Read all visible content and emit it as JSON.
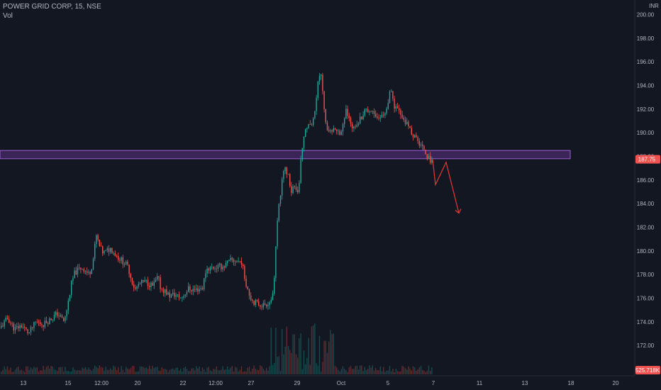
{
  "symbol_title": "POWER GRID CORP, 15, NSE",
  "volume_label": "Vol",
  "currency": "INR",
  "price_label": "187.75",
  "volume_value_label": "525.718K",
  "colors": {
    "background": "#131722",
    "up": "#26a69a",
    "down": "#ef5350",
    "zone_fill": "#4a2b6b",
    "zone_border": "#9c5fd1",
    "arrow": "#e53935",
    "axis_text": "#b2b5be",
    "price_label_bg": "#ef5350"
  },
  "chart_data": {
    "type": "candlestick",
    "title": "POWER GRID CORP, 15, NSE",
    "currency": "INR",
    "y_ticks": [
      172,
      174,
      176,
      178,
      180,
      182,
      184,
      186,
      188,
      190,
      192,
      194,
      196,
      198,
      200
    ],
    "y_tick_labels": [
      "172.00",
      "174.00",
      "176.00",
      "178.00",
      "180.00",
      "182.00",
      "184.00",
      "186.00",
      "188.00",
      "190.00",
      "192.00",
      "194.00",
      "196.00",
      "198.00",
      "200.00"
    ],
    "ylim": [
      169.7,
      200.8
    ],
    "x_ticks": [
      "13",
      "15",
      "12:00",
      "20",
      "22",
      "12:00",
      "27",
      "29",
      "Oct",
      "5",
      "7",
      "11",
      "13",
      "18",
      "20"
    ],
    "last_price": 187.75,
    "resistance_zone": [
      187.8,
      188.5
    ],
    "price_path": [
      [
        0,
        173.5
      ],
      [
        10,
        174.3
      ],
      [
        20,
        173.4
      ],
      [
        30,
        173.7
      ],
      [
        40,
        173.0
      ],
      [
        50,
        174.0
      ],
      [
        60,
        173.8
      ],
      [
        70,
        174.2
      ],
      [
        80,
        174.7
      ],
      [
        90,
        174.0
      ],
      [
        95,
        175.5
      ],
      [
        100,
        177.2
      ],
      [
        105,
        178.2
      ],
      [
        115,
        178.6
      ],
      [
        125,
        178.0
      ],
      [
        130,
        179.0
      ],
      [
        135,
        181.3
      ],
      [
        140,
        180.3
      ],
      [
        145,
        179.8
      ],
      [
        155,
        180.2
      ],
      [
        165,
        179.5
      ],
      [
        175,
        179.0
      ],
      [
        180,
        178.6
      ],
      [
        185,
        177.5
      ],
      [
        190,
        176.7
      ],
      [
        195,
        177.2
      ],
      [
        205,
        177.4
      ],
      [
        215,
        177.0
      ],
      [
        222,
        177.8
      ],
      [
        226,
        176.8
      ],
      [
        232,
        176.6
      ],
      [
        238,
        176.2
      ],
      [
        245,
        176.3
      ],
      [
        255,
        176.0
      ],
      [
        265,
        176.8
      ],
      [
        275,
        176.7
      ],
      [
        285,
        176.9
      ],
      [
        290,
        178.5
      ],
      [
        300,
        178.6
      ],
      [
        315,
        178.7
      ],
      [
        325,
        179.2
      ],
      [
        340,
        179.1
      ],
      [
        345,
        177.5
      ],
      [
        350,
        176.5
      ],
      [
        355,
        175.8
      ],
      [
        360,
        175.6
      ],
      [
        370,
        175.4
      ],
      [
        380,
        175.7
      ],
      [
        385,
        176.5
      ],
      [
        390,
        182.4
      ],
      [
        395,
        185.0
      ],
      [
        400,
        187.2
      ],
      [
        405,
        186.5
      ],
      [
        410,
        185.0
      ],
      [
        415,
        185.6
      ],
      [
        420,
        184.5
      ],
      [
        423,
        187.5
      ],
      [
        428,
        189.8
      ],
      [
        435,
        190.7
      ],
      [
        440,
        190.8
      ],
      [
        445,
        192.6
      ],
      [
        448,
        194.8
      ],
      [
        452,
        194.8
      ],
      [
        456,
        192.4
      ],
      [
        460,
        190.0
      ],
      [
        470,
        190.5
      ],
      [
        480,
        190.0
      ],
      [
        487,
        191.8
      ],
      [
        495,
        190.5
      ],
      [
        505,
        191.0
      ],
      [
        515,
        192.0
      ],
      [
        525,
        191.8
      ],
      [
        535,
        191.2
      ],
      [
        545,
        192.0
      ],
      [
        550,
        193.6
      ],
      [
        555,
        192.2
      ],
      [
        565,
        191.5
      ],
      [
        575,
        190.5
      ],
      [
        585,
        189.5
      ],
      [
        592,
        189.0
      ],
      [
        598,
        188.6
      ],
      [
        603,
        187.8
      ],
      [
        607,
        187.7
      ],
      [
        610,
        187.75
      ]
    ],
    "projection": [
      {
        "price": 187.75,
        "step": 0
      },
      {
        "price": 185.6,
        "step": 1
      },
      {
        "price": 187.5,
        "step": 2
      },
      {
        "price": 183.2,
        "step": 3
      }
    ],
    "last_volume": "525.718K"
  }
}
